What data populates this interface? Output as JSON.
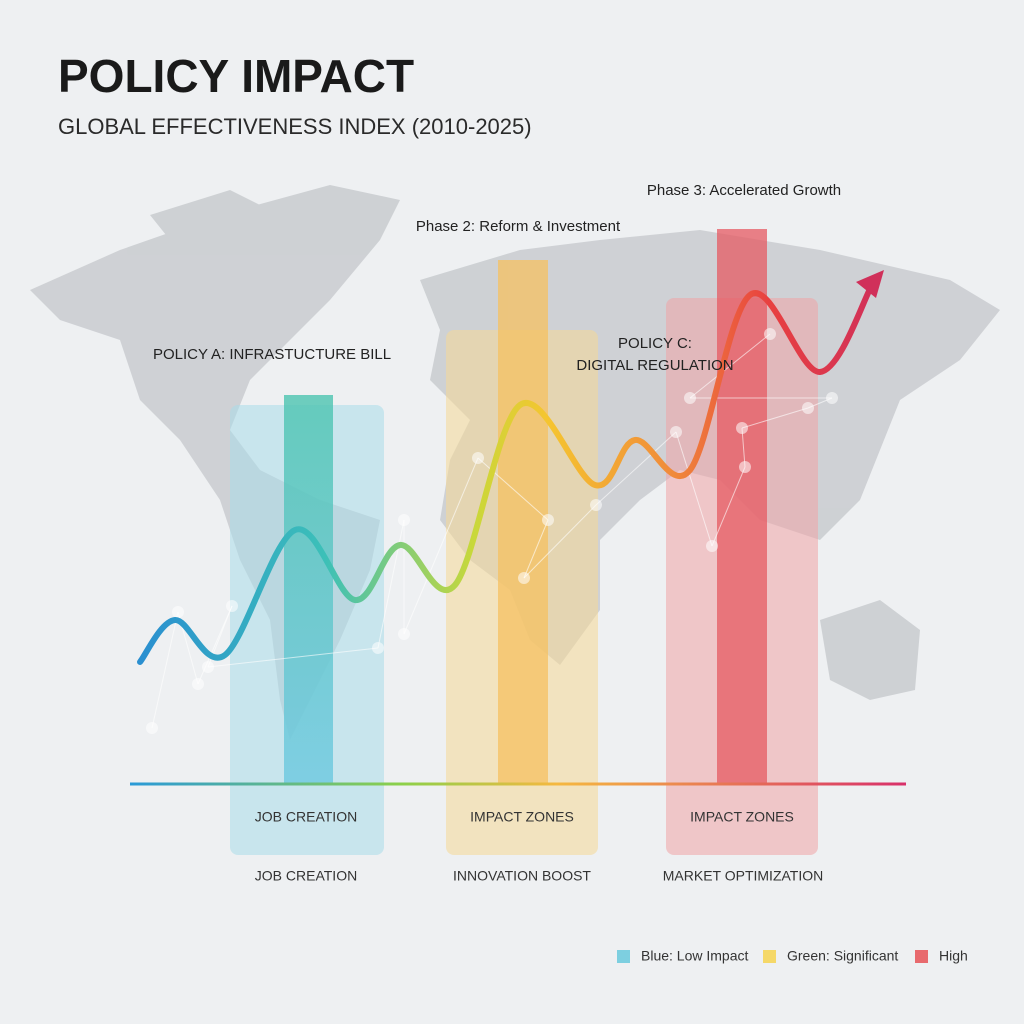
{
  "header": {
    "title": "POLICY IMPACT",
    "subtitle": "GLOBAL EFFECTIVENESS INDEX (2010-2025)"
  },
  "annotations": {
    "phase_3": "Phase 3: Accelerated Growth",
    "phase_2": "Phase 2: Reform & Investment",
    "policy_a": "POLICY A: INFRASTUCTURE BILL",
    "policy_c": [
      "POLICY C:",
      "DIGITAL REGULATION"
    ]
  },
  "panels": [
    {
      "label": "JOB CREATION",
      "caption": "JOB CREATION"
    },
    {
      "label": "IMPACT ZONES",
      "caption": "INNOVATION BOOST"
    },
    {
      "label": "IMPACT ZONES",
      "caption": "MARKET OPTIMIZATION"
    }
  ],
  "legend": [
    {
      "label": "Blue: Low Impact",
      "color": "#7dcfe0"
    },
    {
      "label": "Green: Significant",
      "color": "#f5d868"
    },
    {
      "label": "High",
      "color": "#e86a6e"
    }
  ]
}
